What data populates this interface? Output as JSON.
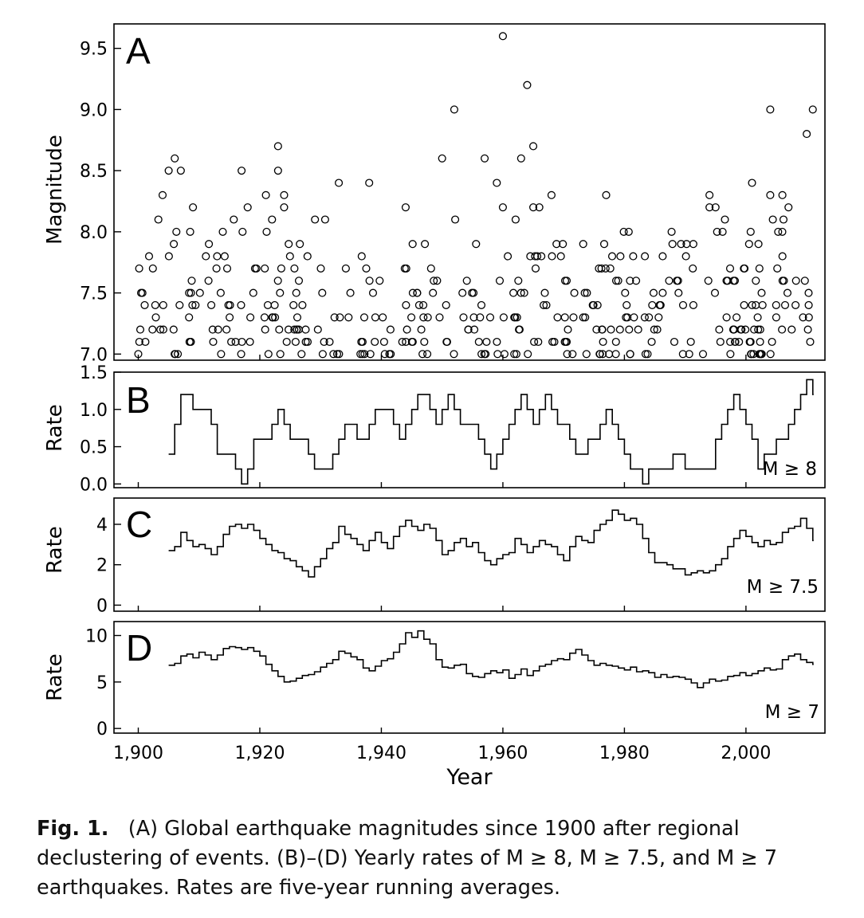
{
  "figure": {
    "x_axis": {
      "label": "Year",
      "ticks": [
        1900,
        1920,
        1940,
        1960,
        1980,
        2000
      ],
      "tick_labels": [
        "1,900",
        "1,920",
        "1,940",
        "1,960",
        "1,980",
        "2,000"
      ]
    }
  },
  "caption": {
    "fig_label": "Fig. 1.",
    "text": "(A) Global earthquake magnitudes since 1900 after regional declustering of events. (B)–(D) Yearly rates of M ≥ 8, M ≥ 7.5, and M ≥ 7 earthquakes. Rates are five-year running averages."
  },
  "chart_data": [
    {
      "id": "A",
      "type": "scatter",
      "panel_label": "A",
      "ylabel": "Magnitude",
      "xlabel": "Year",
      "xlim": [
        1896,
        2013
      ],
      "ylim": [
        6.95,
        9.7
      ],
      "yticks": [
        7.0,
        7.5,
        8.0,
        8.5,
        9.0,
        9.5
      ],
      "ytick_labels": [
        "7.0",
        "7.5",
        "8.0",
        "8.5",
        "9.0",
        "9.5"
      ],
      "marker": "open-circle",
      "notable_points": [
        {
          "x": 1960,
          "y": 9.6
        },
        {
          "x": 1964,
          "y": 9.2
        },
        {
          "x": 2004,
          "y": 9.0
        },
        {
          "x": 2011,
          "y": 9.0
        },
        {
          "x": 1952,
          "y": 9.0
        },
        {
          "x": 2010,
          "y": 8.8
        },
        {
          "x": 1965,
          "y": 8.7
        },
        {
          "x": 1923,
          "y": 8.7
        },
        {
          "x": 1906,
          "y": 8.6
        },
        {
          "x": 1957,
          "y": 8.6
        },
        {
          "x": 1950,
          "y": 8.6
        },
        {
          "x": 1963,
          "y": 8.6
        },
        {
          "x": 1905,
          "y": 8.5
        },
        {
          "x": 1907,
          "y": 8.5
        },
        {
          "x": 1917,
          "y": 8.5
        },
        {
          "x": 1923,
          "y": 8.5
        },
        {
          "x": 1959,
          "y": 8.4
        },
        {
          "x": 1933,
          "y": 8.4
        },
        {
          "x": 1938,
          "y": 8.4
        },
        {
          "x": 2001,
          "y": 8.4
        },
        {
          "x": 1904,
          "y": 8.3
        },
        {
          "x": 1921,
          "y": 8.3
        },
        {
          "x": 1924,
          "y": 8.3
        },
        {
          "x": 1968,
          "y": 8.3
        },
        {
          "x": 1977,
          "y": 8.3
        },
        {
          "x": 1994,
          "y": 8.3
        },
        {
          "x": 2004,
          "y": 8.3
        },
        {
          "x": 2006,
          "y": 8.3
        },
        {
          "x": 1909,
          "y": 8.2
        },
        {
          "x": 1918,
          "y": 8.2
        },
        {
          "x": 1924,
          "y": 8.2
        },
        {
          "x": 1944,
          "y": 8.2
        },
        {
          "x": 1960,
          "y": 8.2
        },
        {
          "x": 1965,
          "y": 8.2
        },
        {
          "x": 1966,
          "y": 8.2
        },
        {
          "x": 1994,
          "y": 8.2
        },
        {
          "x": 1995,
          "y": 8.2
        },
        {
          "x": 2007,
          "y": 8.2
        }
      ],
      "background_points": {
        "seed": 7,
        "x_range": [
          1900,
          2011
        ],
        "magnitude_levels": [
          7.0,
          7.1,
          7.2,
          7.3,
          7.4,
          7.5,
          7.6,
          7.7,
          7.8,
          7.9,
          8.0,
          8.1
        ],
        "counts_per_level": [
          55,
          52,
          48,
          44,
          38,
          34,
          30,
          26,
          22,
          17,
          13,
          10
        ]
      }
    },
    {
      "id": "B",
      "type": "line",
      "panel_label": "B",
      "ylabel": "Rate",
      "annotation": "M ≥ 8",
      "xlim": [
        1896,
        2013
      ],
      "ylim": [
        -0.05,
        1.5
      ],
      "yticks": [
        0.0,
        0.5,
        1.0,
        1.5
      ],
      "ytick_labels": [
        "0.0",
        "0.5",
        "1.0",
        "1.5"
      ],
      "step": true,
      "x": [
        1905,
        1906,
        1907,
        1908,
        1909,
        1910,
        1911,
        1912,
        1913,
        1914,
        1915,
        1916,
        1917,
        1918,
        1919,
        1920,
        1921,
        1922,
        1923,
        1924,
        1925,
        1926,
        1927,
        1928,
        1929,
        1930,
        1931,
        1932,
        1933,
        1934,
        1935,
        1936,
        1937,
        1938,
        1939,
        1940,
        1941,
        1942,
        1943,
        1944,
        1945,
        1946,
        1947,
        1948,
        1949,
        1950,
        1951,
        1952,
        1953,
        1954,
        1955,
        1956,
        1957,
        1958,
        1959,
        1960,
        1961,
        1962,
        1963,
        1964,
        1965,
        1966,
        1967,
        1968,
        1969,
        1970,
        1971,
        1972,
        1973,
        1974,
        1975,
        1976,
        1977,
        1978,
        1979,
        1980,
        1981,
        1982,
        1983,
        1984,
        1985,
        1986,
        1987,
        1988,
        1989,
        1990,
        1991,
        1992,
        1993,
        1994,
        1995,
        1996,
        1997,
        1998,
        1999,
        2000,
        2001,
        2002,
        2003,
        2004,
        2005,
        2006,
        2007,
        2008,
        2009,
        2010,
        2011
      ],
      "y": [
        0.4,
        0.8,
        1.2,
        1.2,
        1.0,
        1.0,
        1.0,
        0.8,
        0.4,
        0.4,
        0.4,
        0.2,
        0.0,
        0.2,
        0.6,
        0.6,
        0.6,
        0.8,
        1.0,
        0.8,
        0.6,
        0.6,
        0.6,
        0.4,
        0.2,
        0.2,
        0.2,
        0.4,
        0.6,
        0.8,
        0.8,
        0.6,
        0.6,
        0.8,
        1.0,
        1.0,
        1.0,
        0.8,
        0.6,
        0.8,
        1.0,
        1.2,
        1.2,
        1.0,
        0.8,
        1.0,
        1.2,
        1.0,
        0.8,
        0.8,
        0.8,
        0.6,
        0.4,
        0.2,
        0.4,
        0.6,
        0.8,
        1.0,
        1.2,
        1.0,
        0.8,
        1.0,
        1.2,
        1.0,
        0.8,
        0.8,
        0.6,
        0.4,
        0.4,
        0.6,
        0.6,
        0.8,
        1.0,
        0.8,
        0.6,
        0.4,
        0.2,
        0.2,
        0.0,
        0.2,
        0.2,
        0.2,
        0.2,
        0.4,
        0.4,
        0.2,
        0.2,
        0.2,
        0.2,
        0.2,
        0.6,
        0.8,
        1.0,
        1.2,
        1.0,
        0.8,
        0.6,
        0.2,
        0.4,
        0.4,
        0.6,
        0.6,
        0.8,
        1.0,
        1.2,
        1.4,
        1.2
      ]
    },
    {
      "id": "C",
      "type": "line",
      "panel_label": "C",
      "ylabel": "Rate",
      "annotation": "M ≥ 7.5",
      "xlim": [
        1896,
        2013
      ],
      "ylim": [
        -0.3,
        5.3
      ],
      "yticks": [
        0,
        2,
        4
      ],
      "ytick_labels": [
        "0",
        "2",
        "4"
      ],
      "step": true,
      "x": [
        1905,
        1906,
        1907,
        1908,
        1909,
        1910,
        1911,
        1912,
        1913,
        1914,
        1915,
        1916,
        1917,
        1918,
        1919,
        1920,
        1921,
        1922,
        1923,
        1924,
        1925,
        1926,
        1927,
        1928,
        1929,
        1930,
        1931,
        1932,
        1933,
        1934,
        1935,
        1936,
        1937,
        1938,
        1939,
        1940,
        1941,
        1942,
        1943,
        1944,
        1945,
        1946,
        1947,
        1948,
        1949,
        1950,
        1951,
        1952,
        1953,
        1954,
        1955,
        1956,
        1957,
        1958,
        1959,
        1960,
        1961,
        1962,
        1963,
        1964,
        1965,
        1966,
        1967,
        1968,
        1969,
        1970,
        1971,
        1972,
        1973,
        1974,
        1975,
        1976,
        1977,
        1978,
        1979,
        1980,
        1981,
        1982,
        1983,
        1984,
        1985,
        1986,
        1987,
        1988,
        1989,
        1990,
        1991,
        1992,
        1993,
        1994,
        1995,
        1996,
        1997,
        1998,
        1999,
        2000,
        2001,
        2002,
        2003,
        2004,
        2005,
        2006,
        2007,
        2008,
        2009,
        2010,
        2011
      ],
      "y": [
        2.7,
        2.9,
        3.6,
        3.2,
        2.9,
        3.0,
        2.8,
        2.5,
        2.9,
        3.5,
        3.9,
        4.0,
        3.8,
        4.0,
        3.7,
        3.3,
        3.0,
        2.7,
        2.6,
        2.3,
        2.2,
        1.9,
        1.7,
        1.4,
        1.9,
        2.3,
        2.8,
        3.1,
        3.9,
        3.5,
        3.3,
        3.0,
        2.7,
        3.2,
        3.6,
        3.1,
        2.8,
        3.4,
        3.9,
        4.2,
        3.9,
        3.7,
        4.0,
        3.8,
        3.2,
        2.5,
        2.7,
        3.1,
        3.3,
        2.9,
        3.1,
        2.6,
        2.2,
        2.0,
        2.3,
        2.5,
        2.6,
        3.3,
        3.0,
        2.6,
        2.9,
        3.2,
        3.0,
        2.9,
        2.5,
        2.2,
        2.9,
        3.4,
        3.2,
        3.1,
        3.7,
        4.0,
        4.2,
        4.7,
        4.5,
        4.2,
        4.3,
        4.0,
        3.3,
        2.6,
        2.1,
        2.1,
        2.0,
        1.8,
        1.8,
        1.5,
        1.6,
        1.7,
        1.6,
        1.7,
        2.0,
        2.3,
        2.9,
        3.3,
        3.7,
        3.4,
        3.1,
        2.9,
        3.2,
        3.0,
        3.1,
        3.6,
        3.8,
        3.9,
        4.3,
        3.8,
        3.2
      ]
    },
    {
      "id": "D",
      "type": "line",
      "panel_label": "D",
      "ylabel": "Rate",
      "annotation": "M ≥ 7",
      "xlim": [
        1896,
        2013
      ],
      "ylim": [
        -0.5,
        11.5
      ],
      "yticks": [
        0,
        5,
        10
      ],
      "ytick_labels": [
        "0",
        "5",
        "10"
      ],
      "step": true,
      "x": [
        1905,
        1906,
        1907,
        1908,
        1909,
        1910,
        1911,
        1912,
        1913,
        1914,
        1915,
        1916,
        1917,
        1918,
        1919,
        1920,
        1921,
        1922,
        1923,
        1924,
        1925,
        1926,
        1927,
        1928,
        1929,
        1930,
        1931,
        1932,
        1933,
        1934,
        1935,
        1936,
        1937,
        1938,
        1939,
        1940,
        1941,
        1942,
        1943,
        1944,
        1945,
        1946,
        1947,
        1948,
        1949,
        1950,
        1951,
        1952,
        1953,
        1954,
        1955,
        1956,
        1957,
        1958,
        1959,
        1960,
        1961,
        1962,
        1963,
        1964,
        1965,
        1966,
        1967,
        1968,
        1969,
        1970,
        1971,
        1972,
        1973,
        1974,
        1975,
        1976,
        1977,
        1978,
        1979,
        1980,
        1981,
        1982,
        1983,
        1984,
        1985,
        1986,
        1987,
        1988,
        1989,
        1990,
        1991,
        1992,
        1993,
        1994,
        1995,
        1996,
        1997,
        1998,
        1999,
        2000,
        2001,
        2002,
        2003,
        2004,
        2005,
        2006,
        2007,
        2008,
        2009,
        2010,
        2011
      ],
      "y": [
        6.8,
        7.0,
        7.8,
        8.0,
        7.6,
        8.2,
        7.9,
        7.4,
        7.9,
        8.6,
        8.8,
        8.7,
        8.5,
        8.7,
        8.3,
        7.8,
        6.9,
        6.2,
        5.6,
        5.0,
        5.1,
        5.4,
        5.7,
        5.8,
        6.1,
        6.6,
        7.0,
        7.4,
        8.3,
        8.1,
        7.7,
        7.4,
        6.5,
        6.2,
        6.7,
        7.3,
        7.5,
        8.2,
        9.1,
        10.3,
        9.8,
        10.5,
        9.6,
        9.1,
        7.4,
        6.6,
        6.5,
        6.8,
        6.9,
        5.9,
        5.6,
        5.5,
        5.9,
        6.2,
        6.0,
        6.3,
        5.4,
        5.8,
        6.4,
        5.7,
        6.2,
        6.7,
        6.9,
        7.3,
        7.5,
        7.4,
        8.1,
        8.5,
        7.9,
        7.3,
        6.8,
        7.0,
        6.8,
        6.7,
        6.5,
        6.3,
        6.6,
        6.1,
        6.2,
        6.0,
        5.5,
        5.8,
        5.5,
        5.6,
        5.5,
        5.3,
        4.9,
        4.4,
        4.9,
        5.3,
        5.1,
        5.2,
        5.6,
        5.7,
        6.0,
        5.7,
        5.9,
        6.2,
        6.5,
        6.3,
        6.4,
        7.4,
        7.8,
        8.0,
        7.4,
        7.1,
        6.9
      ]
    }
  ]
}
